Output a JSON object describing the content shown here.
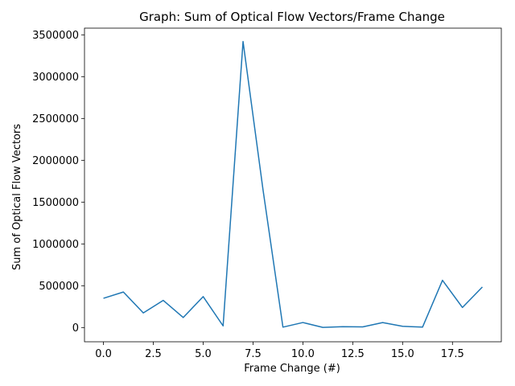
{
  "chart_data": {
    "type": "line",
    "title": "Graph: Sum of Optical Flow Vectors/Frame Change",
    "xlabel": "Frame Change (#)",
    "ylabel": "Sum of Optical Flow Vectors",
    "xlim": [
      -0.95,
      19.95
    ],
    "ylim": [
      -170000,
      3580000
    ],
    "xticks": [
      0.0,
      2.5,
      5.0,
      7.5,
      10.0,
      12.5,
      15.0,
      17.5
    ],
    "xtick_labels": [
      "0.0",
      "2.5",
      "5.0",
      "7.5",
      "10.0",
      "12.5",
      "15.0",
      "17.5"
    ],
    "yticks": [
      0,
      500000,
      1000000,
      1500000,
      2000000,
      2500000,
      3000000,
      3500000
    ],
    "ytick_labels": [
      "0",
      "500000",
      "1000000",
      "1500000",
      "2000000",
      "2500000",
      "3000000",
      "3500000"
    ],
    "grid": false,
    "line_color": "#1f77b4",
    "x": [
      0,
      1,
      2,
      3,
      4,
      5,
      6,
      7,
      8,
      9,
      10,
      11,
      12,
      13,
      14,
      15,
      16,
      17,
      18,
      19
    ],
    "values": [
      350000,
      425000,
      175000,
      325000,
      120000,
      370000,
      20000,
      3420000,
      1650000,
      5000,
      60000,
      2000,
      10000,
      8000,
      60000,
      15000,
      5000,
      565000,
      240000,
      485000
    ]
  }
}
